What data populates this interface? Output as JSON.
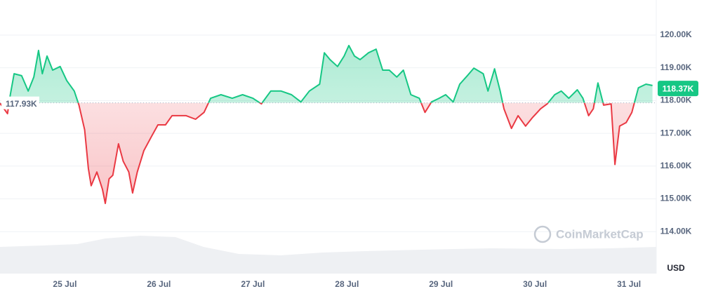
{
  "chart_data": {
    "type": "line",
    "x": [
      24.31,
      24.39,
      24.42,
      24.46,
      24.54,
      24.61,
      24.67,
      24.72,
      24.76,
      24.81,
      24.87,
      24.95,
      25.02,
      25.1,
      25.15,
      25.21,
      25.25,
      25.28,
      25.34,
      25.4,
      25.43,
      25.47,
      25.51,
      25.57,
      25.62,
      25.68,
      25.72,
      25.77,
      25.84,
      25.92,
      25.99,
      26.07,
      26.14,
      26.22,
      26.29,
      26.39,
      26.48,
      26.55,
      26.66,
      26.78,
      26.89,
      27.0,
      27.09,
      27.19,
      27.3,
      27.41,
      27.51,
      27.6,
      27.71,
      27.76,
      27.82,
      27.9,
      27.97,
      28.02,
      28.08,
      28.14,
      28.23,
      28.31,
      28.38,
      28.45,
      28.53,
      28.6,
      28.68,
      28.77,
      28.83,
      28.9,
      28.98,
      29.05,
      29.13,
      29.2,
      29.28,
      29.35,
      29.45,
      29.5,
      29.57,
      29.63,
      29.67,
      29.75,
      29.82,
      29.9,
      29.97,
      30.06,
      30.13,
      30.21,
      30.28,
      30.36,
      30.45,
      30.51,
      30.57,
      30.62,
      30.67,
      30.73,
      30.81,
      30.85,
      30.9,
      30.97,
      31.03,
      31.1,
      31.18,
      31.25
    ],
    "series": [
      {
        "name": "Price",
        "color": "#16c784",
        "values": [
          117.92,
          117.6,
          118.18,
          118.82,
          118.76,
          118.29,
          118.72,
          119.53,
          118.82,
          119.36,
          118.93,
          119.04,
          118.61,
          118.29,
          117.86,
          117.11,
          115.93,
          115.4,
          115.82,
          115.29,
          114.86,
          115.61,
          115.72,
          116.68,
          116.15,
          115.82,
          115.18,
          115.82,
          116.47,
          116.9,
          117.26,
          117.26,
          117.54,
          117.54,
          117.54,
          117.43,
          117.64,
          118.07,
          118.18,
          118.07,
          118.18,
          118.07,
          117.9,
          118.29,
          118.29,
          118.18,
          117.96,
          118.29,
          118.5,
          119.46,
          119.25,
          119.04,
          119.36,
          119.68,
          119.36,
          119.25,
          119.46,
          119.57,
          118.93,
          118.93,
          118.72,
          118.93,
          118.18,
          118.07,
          117.64,
          117.96,
          118.07,
          118.18,
          117.96,
          118.5,
          118.76,
          118.99,
          118.82,
          118.29,
          118.97,
          118.29,
          117.75,
          117.15,
          117.54,
          117.22,
          117.47,
          117.75,
          117.9,
          118.18,
          118.29,
          118.07,
          118.33,
          118.07,
          117.54,
          117.75,
          118.54,
          117.86,
          117.9,
          116.05,
          117.22,
          117.33,
          117.64,
          118.39,
          118.5,
          118.46
        ]
      }
    ],
    "baseline": {
      "value": 117.93,
      "label": "117.93K"
    },
    "baseline_color": "#ea3943",
    "last_price": {
      "value": 118.37,
      "label": "118.37K"
    },
    "currency": "USD",
    "watermark": "CoinMarketCap",
    "grid": true,
    "xlim": [
      24.31,
      31.29
    ],
    "xticks": [
      {
        "value": 25,
        "label": "25 Jul"
      },
      {
        "value": 26,
        "label": "26 Jul"
      },
      {
        "value": 27,
        "label": "27 Jul"
      },
      {
        "value": 28,
        "label": "28 Jul"
      },
      {
        "value": 29,
        "label": "29 Jul"
      },
      {
        "value": 30,
        "label": "30 Jul"
      },
      {
        "value": 31,
        "label": "31 Jul"
      }
    ],
    "ylim": [
      112.72,
      121.07
    ],
    "yticks": [
      {
        "value": 114,
        "label": "114.00K"
      },
      {
        "value": 115,
        "label": "115.00K"
      },
      {
        "value": 116,
        "label": "116.00K"
      },
      {
        "value": 117,
        "label": "117.00K"
      },
      {
        "value": 118,
        "label": "118.00K"
      },
      {
        "value": 119,
        "label": "119.00K"
      },
      {
        "value": 120,
        "label": "120.00K"
      }
    ]
  }
}
